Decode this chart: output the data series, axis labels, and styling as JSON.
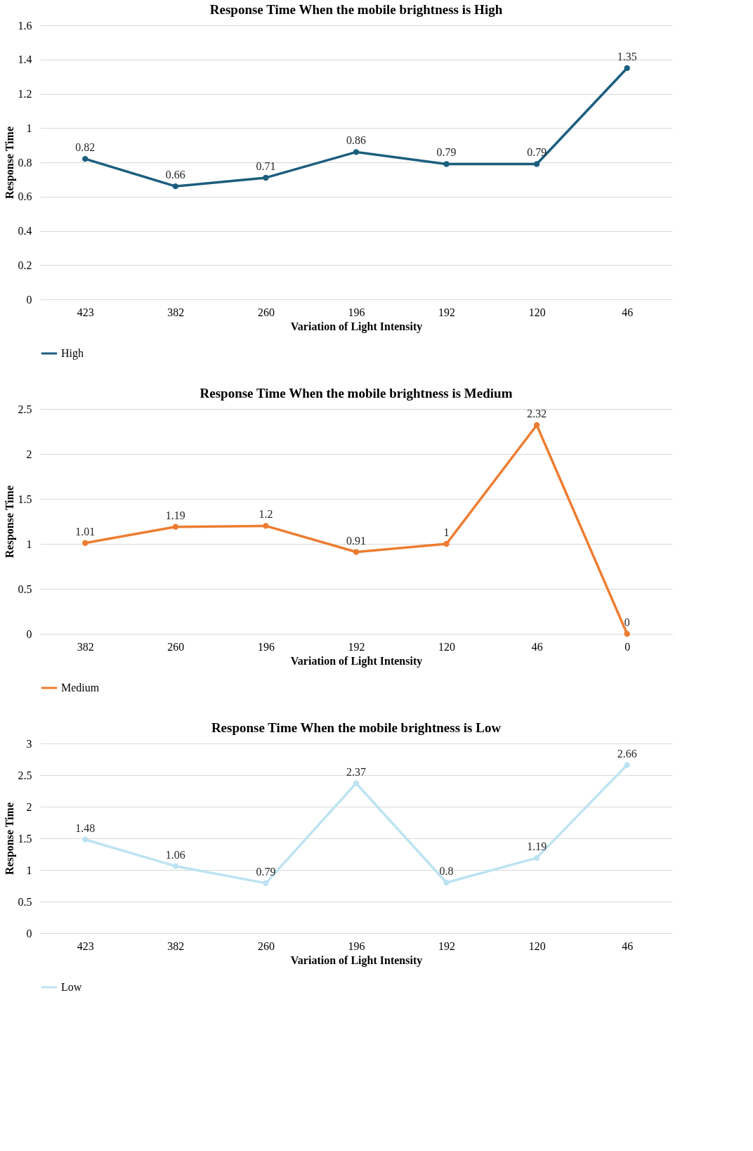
{
  "chart_data": [
    {
      "type": "line",
      "title": "Response Time When the mobile brightness is High",
      "xlabel": "Variation of Light Intensity",
      "ylabel": "Response Time",
      "categories": [
        "423",
        "382",
        "260",
        "196",
        "192",
        "120",
        "46"
      ],
      "series": [
        {
          "name": "High",
          "color": "#1b5e7e",
          "values": [
            0.82,
            0.66,
            0.71,
            0.86,
            0.79,
            0.79,
            1.35
          ]
        }
      ],
      "ylim": [
        0,
        1.6
      ],
      "yticks": [
        0,
        0.2,
        0.4,
        0.6,
        0.8,
        1,
        1.2,
        1.4,
        1.6
      ],
      "grid": "y",
      "legend": "bottom",
      "marker": "circle",
      "line_style": "solid",
      "data_labels": true
    },
    {
      "type": "line",
      "title": "Response Time When the mobile brightness is Medium",
      "xlabel": "Variation of Light Intensity",
      "ylabel": "Response Time",
      "categories": [
        "382",
        "260",
        "196",
        "192",
        "120",
        "46",
        "0"
      ],
      "series": [
        {
          "name": "Medium",
          "color": "#ed7d31",
          "values": [
            1.01,
            1.19,
            1.2,
            0.91,
            1,
            2.32,
            0
          ]
        }
      ],
      "ylim": [
        0,
        2.5
      ],
      "yticks": [
        0,
        0.5,
        1,
        1.5,
        2,
        2.5
      ],
      "grid": "y",
      "legend": "bottom",
      "marker": "circle",
      "line_style": "solid",
      "data_labels": true
    },
    {
      "type": "line",
      "title": "Response Time When the mobile brightness is Low",
      "xlabel": "Variation of Light Intensity",
      "ylabel": "Response Time",
      "categories": [
        "423",
        "382",
        "260",
        "196",
        "192",
        "120",
        "46"
      ],
      "series": [
        {
          "name": "Low",
          "color": "#bde3f2",
          "values": [
            1.48,
            1.06,
            0.79,
            2.37,
            0.8,
            1.19,
            2.66
          ]
        }
      ],
      "ylim": [
        0,
        3
      ],
      "yticks": [
        0,
        0.5,
        1,
        1.5,
        2,
        2.5,
        3
      ],
      "grid": "y",
      "legend": "bottom",
      "marker": "circle",
      "line_style": "solid",
      "data_labels": true
    }
  ]
}
